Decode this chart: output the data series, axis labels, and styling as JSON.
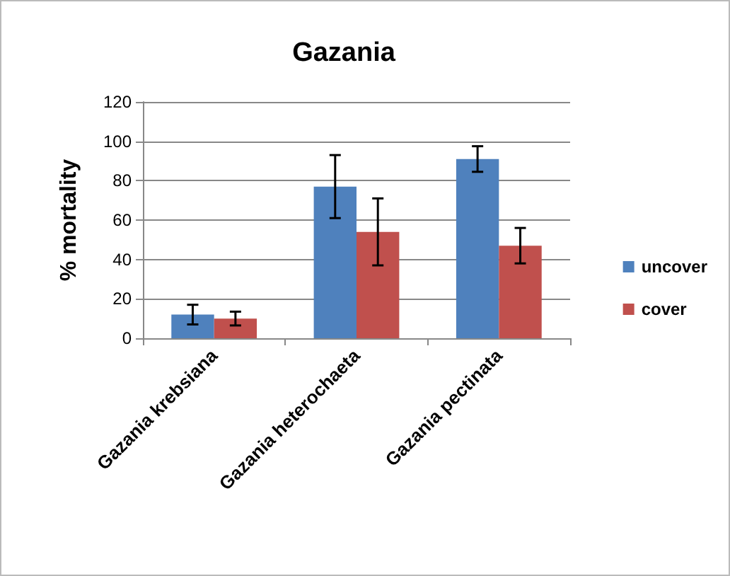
{
  "chart_data": {
    "type": "bar",
    "title": "Gazania",
    "ylabel": "% mortality",
    "categories": [
      "Gazania krebsiana",
      "Gazania heterochaeta",
      "Gazania pectinata"
    ],
    "series": [
      {
        "name": "uncover",
        "color": "#4f81bd",
        "values": [
          12,
          77,
          91
        ],
        "errors": [
          5,
          16,
          6.5
        ]
      },
      {
        "name": "cover",
        "color": "#c0504d",
        "values": [
          10,
          54,
          47
        ],
        "errors": [
          3.5,
          17,
          9
        ]
      }
    ],
    "ylim": [
      0,
      120
    ],
    "yticks": [
      0,
      20,
      40,
      60,
      80,
      100,
      120
    ],
    "grid": "y",
    "legend": "right"
  }
}
